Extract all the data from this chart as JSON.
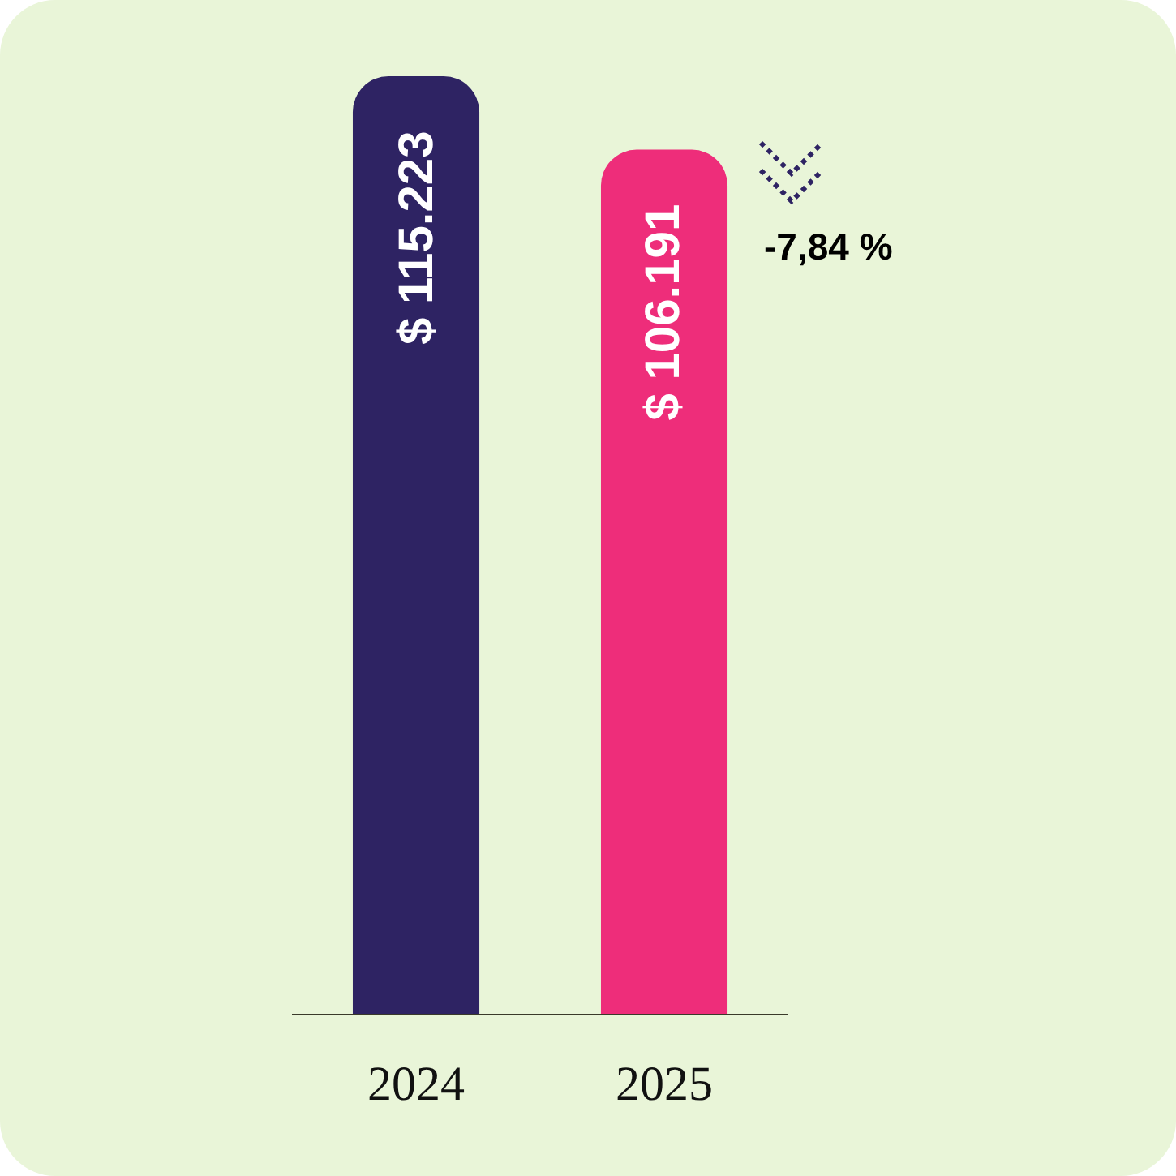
{
  "chart_data": {
    "type": "bar",
    "categories": [
      "2024",
      "2025"
    ],
    "values": [
      115223,
      106191
    ],
    "colors": [
      "#2e2363",
      "#ee2d7a"
    ],
    "value_labels": [
      "$ 115.223",
      "$ 106.191"
    ],
    "annotations": [
      "-7,84 %"
    ],
    "tick_labels": "x"
  }
}
